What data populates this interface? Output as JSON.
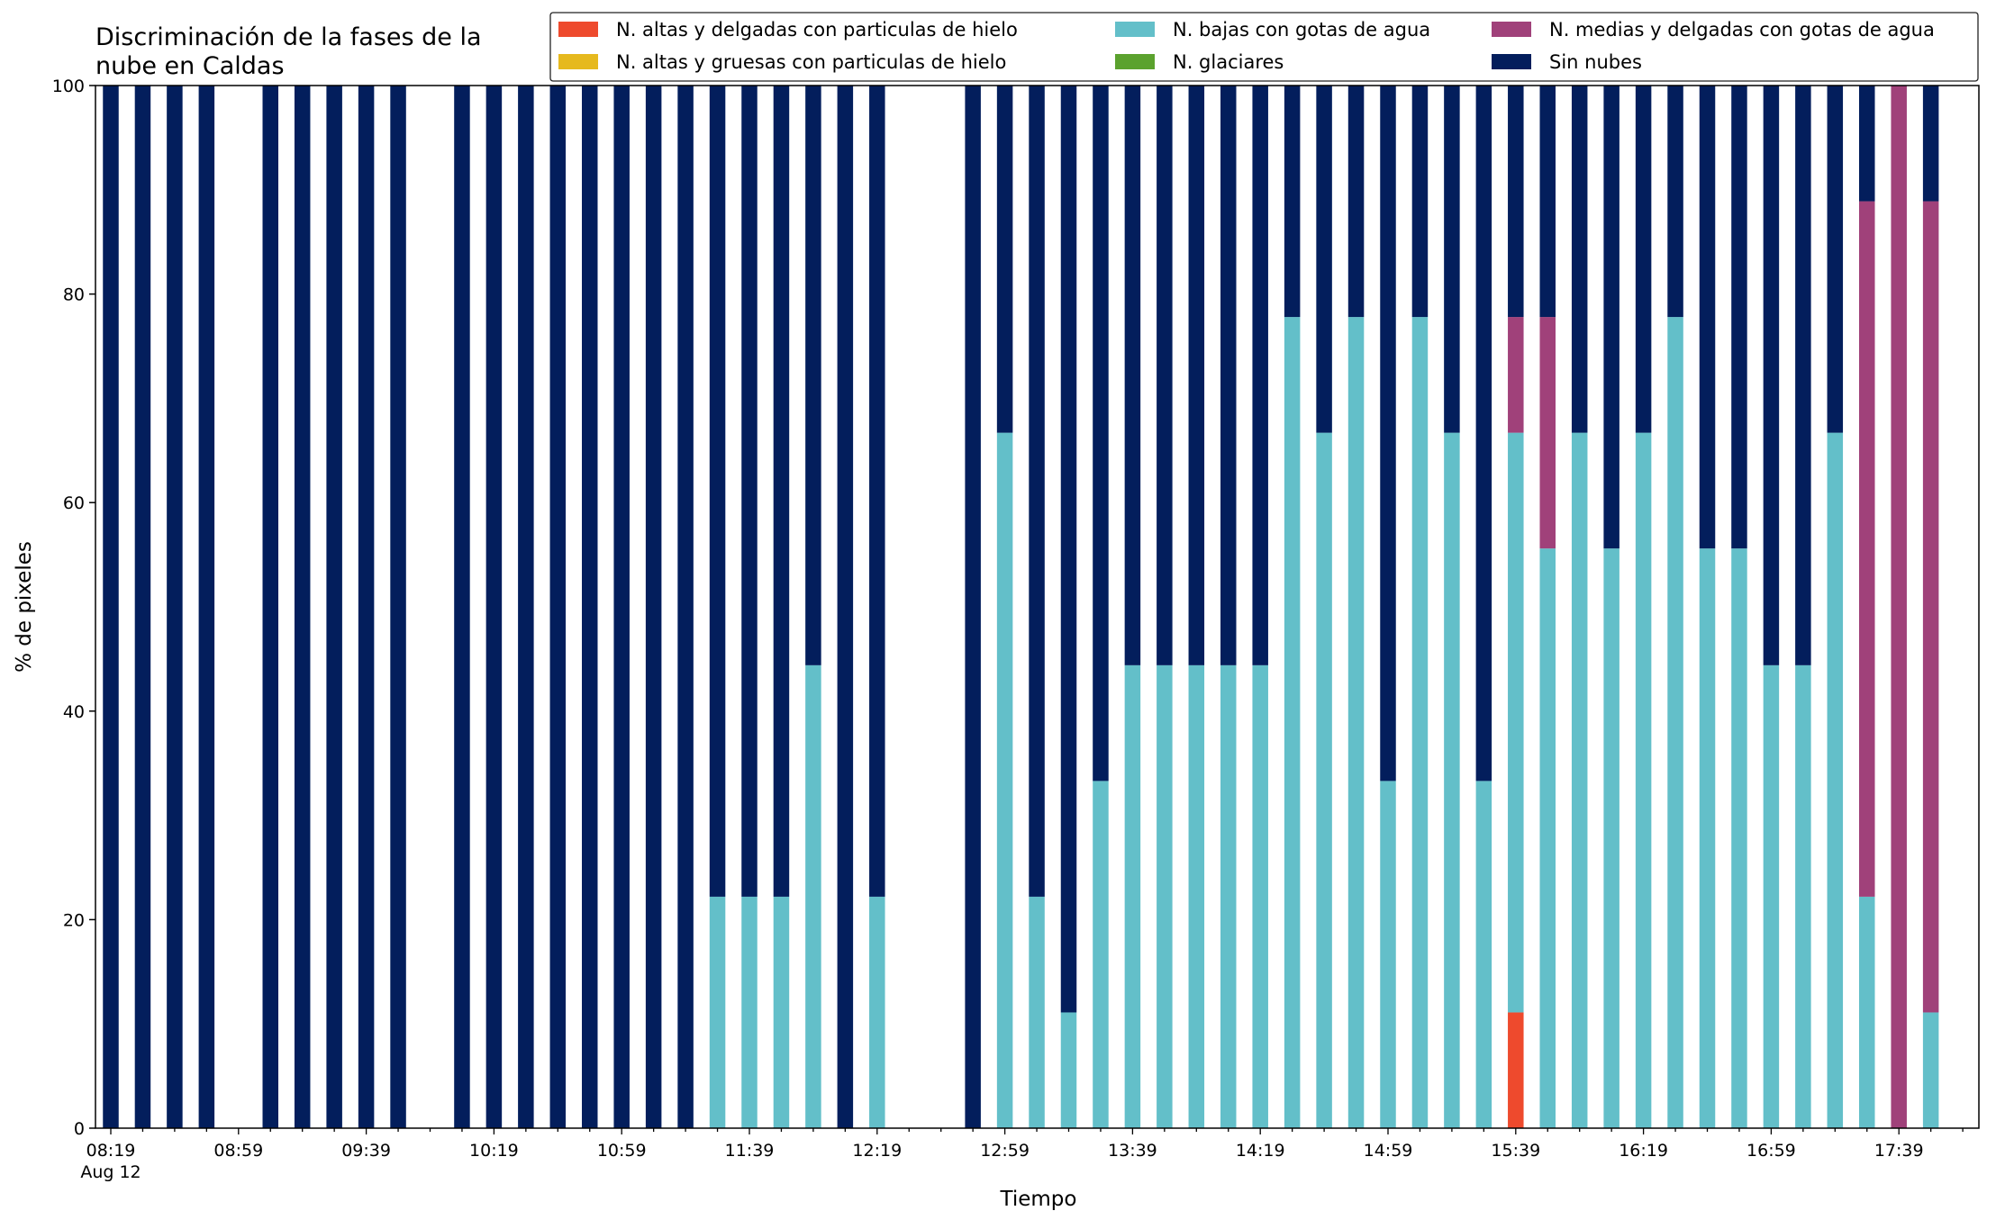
{
  "chart_data": {
    "type": "bar",
    "stacked": true,
    "title": "Discriminación de la fases de la\nnube en Caldas",
    "xlabel": "Tiempo",
    "ylabel": "% de pixeles",
    "ylim": [
      0,
      100
    ],
    "yticks": [
      0,
      20,
      40,
      60,
      80,
      100
    ],
    "grid": false,
    "legend_position": "top-right",
    "x_interval_minutes": 10,
    "x": [
      "08:19",
      "08:29",
      "08:39",
      "08:49",
      "08:59",
      "09:09",
      "09:19",
      "09:29",
      "09:39",
      "09:49",
      "09:59",
      "10:09",
      "10:19",
      "10:29",
      "10:39",
      "10:49",
      "10:59",
      "11:09",
      "11:19",
      "11:29",
      "11:39",
      "11:49",
      "11:59",
      "12:09",
      "12:19",
      "12:29",
      "12:39",
      "12:49",
      "12:59",
      "13:09",
      "13:19",
      "13:29",
      "13:39",
      "13:49",
      "13:59",
      "14:09",
      "14:19",
      "14:29",
      "14:39",
      "14:49",
      "14:59",
      "15:09",
      "15:19",
      "15:29",
      "15:39",
      "15:49",
      "15:59",
      "16:09",
      "16:19",
      "16:29",
      "16:39",
      "16:49",
      "16:59",
      "17:09",
      "17:19",
      "17:29",
      "17:39",
      "17:49"
    ],
    "xtick_labels": [
      {
        "index": 0,
        "label": "08:19",
        "sublabel": "Aug 12"
      },
      {
        "index": 4,
        "label": "08:59"
      },
      {
        "index": 8,
        "label": "09:39"
      },
      {
        "index": 12,
        "label": "10:19"
      },
      {
        "index": 16,
        "label": "10:59"
      },
      {
        "index": 20,
        "label": "11:39"
      },
      {
        "index": 24,
        "label": "12:19"
      },
      {
        "index": 28,
        "label": "12:59"
      },
      {
        "index": 32,
        "label": "13:39"
      },
      {
        "index": 36,
        "label": "14:19"
      },
      {
        "index": 40,
        "label": "14:59"
      },
      {
        "index": 44,
        "label": "15:39"
      },
      {
        "index": 48,
        "label": "16:19"
      },
      {
        "index": 52,
        "label": "16:59"
      },
      {
        "index": 56,
        "label": "17:39"
      }
    ],
    "series": [
      {
        "name": "N. altas y delgadas con particulas de hielo",
        "color": "#ee4a2d",
        "values": [
          0,
          0,
          0,
          0,
          null,
          0,
          0,
          0,
          0,
          0,
          null,
          0,
          0,
          0,
          0,
          0,
          0,
          0,
          0,
          0,
          0,
          0,
          0,
          0,
          0,
          null,
          null,
          0,
          0,
          0,
          0,
          0,
          0,
          0,
          0,
          0,
          0,
          0,
          0,
          0,
          0,
          0,
          0,
          0,
          11.1,
          0,
          0,
          0,
          0,
          0,
          0,
          0,
          0,
          0,
          0,
          0,
          0,
          0
        ]
      },
      {
        "name": "N. altas y gruesas con particulas de hielo",
        "color": "#e6b91e",
        "values": [
          0,
          0,
          0,
          0,
          null,
          0,
          0,
          0,
          0,
          0,
          null,
          0,
          0,
          0,
          0,
          0,
          0,
          0,
          0,
          0,
          0,
          0,
          0,
          0,
          0,
          null,
          null,
          0,
          0,
          0,
          0,
          0,
          0,
          0,
          0,
          0,
          0,
          0,
          0,
          0,
          0,
          0,
          0,
          0,
          0,
          0,
          0,
          0,
          0,
          0,
          0,
          0,
          0,
          0,
          0,
          0,
          0,
          0
        ]
      },
      {
        "name": "N. bajas con gotas de agua",
        "color": "#63bfc9",
        "values": [
          0,
          0,
          0,
          0,
          null,
          0,
          0,
          0,
          0,
          0,
          null,
          0,
          0,
          0,
          0,
          0,
          0,
          0,
          0,
          22.2,
          22.2,
          22.2,
          44.4,
          0,
          22.2,
          null,
          null,
          0,
          66.7,
          22.2,
          11.1,
          33.3,
          44.4,
          44.4,
          44.4,
          44.4,
          44.4,
          77.8,
          66.7,
          77.8,
          33.3,
          77.8,
          66.7,
          33.3,
          55.6,
          55.6,
          66.7,
          55.6,
          66.7,
          77.8,
          55.6,
          55.6,
          44.4,
          44.4,
          66.7,
          22.2,
          0,
          11.1
        ]
      },
      {
        "name": "N. glaciares",
        "color": "#5ba22e",
        "values": [
          0,
          0,
          0,
          0,
          null,
          0,
          0,
          0,
          0,
          0,
          null,
          0,
          0,
          0,
          0,
          0,
          0,
          0,
          0,
          0,
          0,
          0,
          0,
          0,
          0,
          null,
          null,
          0,
          0,
          0,
          0,
          0,
          0,
          0,
          0,
          0,
          0,
          0,
          0,
          0,
          0,
          0,
          0,
          0,
          0,
          0,
          0,
          0,
          0,
          0,
          0,
          0,
          0,
          0,
          0,
          0,
          0,
          0
        ]
      },
      {
        "name": "N. medias y delgadas con gotas de agua",
        "color": "#a0417a",
        "values": [
          0,
          0,
          0,
          0,
          null,
          0,
          0,
          0,
          0,
          0,
          null,
          0,
          0,
          0,
          0,
          0,
          0,
          0,
          0,
          0,
          0,
          0,
          0,
          0,
          0,
          null,
          null,
          0,
          0,
          0,
          0,
          0,
          0,
          0,
          0,
          0,
          0,
          0,
          0,
          0,
          0,
          0,
          0,
          0,
          11.1,
          22.2,
          0,
          0,
          0,
          0,
          0,
          0,
          0,
          0,
          0,
          66.7,
          100,
          77.8
        ]
      },
      {
        "name": "Sin nubes",
        "color": "#031e5c",
        "values": [
          100,
          100,
          100,
          100,
          null,
          100,
          100,
          100,
          100,
          100,
          null,
          100,
          100,
          100,
          100,
          100,
          100,
          100,
          100,
          77.8,
          77.8,
          77.8,
          55.6,
          100,
          77.8,
          null,
          null,
          100,
          33.3,
          77.8,
          88.9,
          66.7,
          55.6,
          55.6,
          55.6,
          55.6,
          55.6,
          22.2,
          33.3,
          22.2,
          66.7,
          22.2,
          33.3,
          66.7,
          22.2,
          22.2,
          33.3,
          44.4,
          33.3,
          22.2,
          44.4,
          44.4,
          55.6,
          55.6,
          33.3,
          11.1,
          0,
          11.1
        ]
      }
    ]
  }
}
